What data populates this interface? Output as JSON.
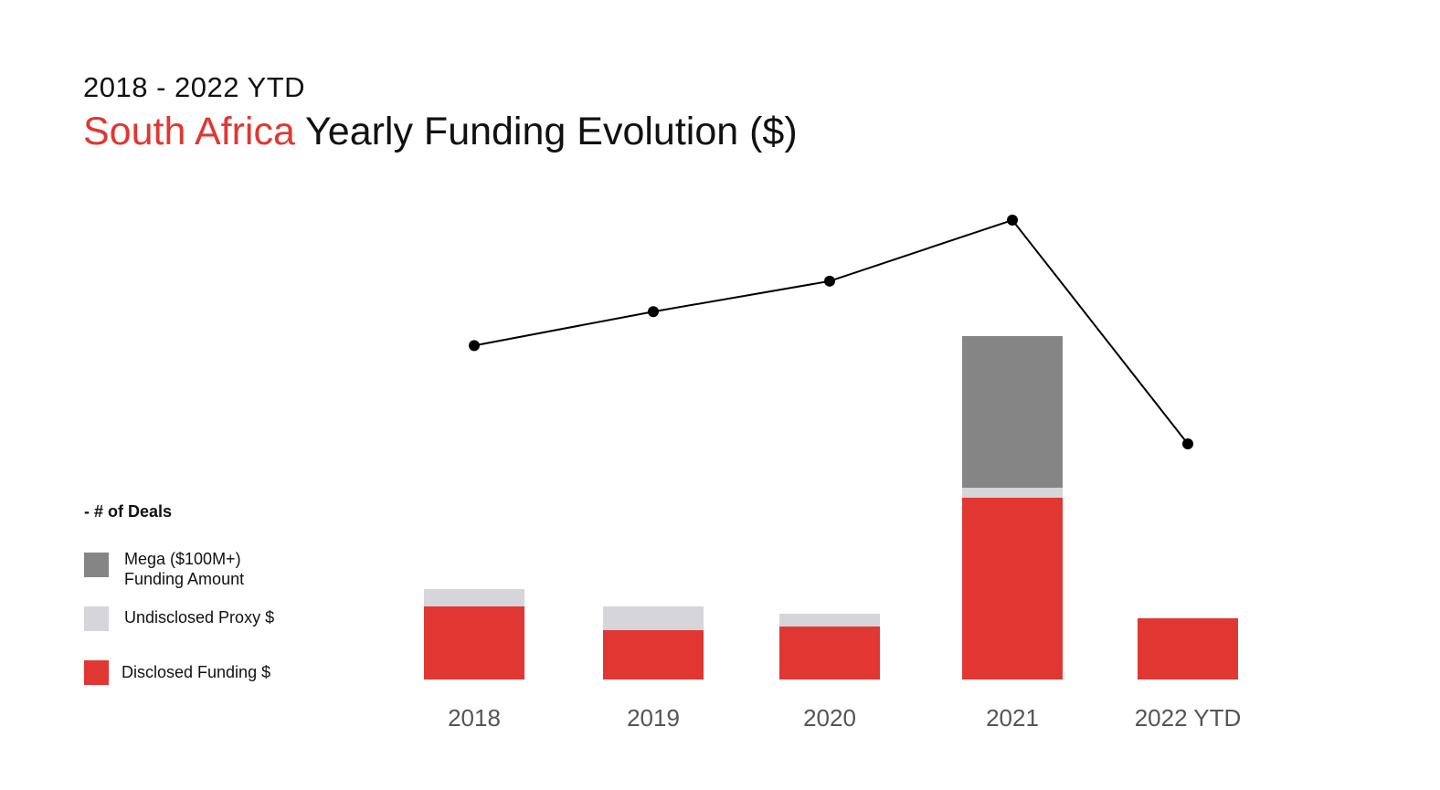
{
  "header": {
    "subtitle": "2018 - 2022  YTD",
    "title_accent": "South Africa",
    "title_rest": " Yearly Funding Evolution ($)"
  },
  "legend": {
    "deals_label": "- # of Deals",
    "items": [
      {
        "label": "Mega ($100M+)\nFunding Amount",
        "color": "#858585"
      },
      {
        "label": "Undisclosed Proxy $",
        "color": "#d5d5da"
      },
      {
        "label": "Disclosed Funding $",
        "color": "#e03733"
      }
    ]
  },
  "chart_data": {
    "type": "bar",
    "stacked": true,
    "categories": [
      "2018",
      "2019",
      "2020",
      "2021",
      "2022 YTD"
    ],
    "series": [
      {
        "name": "Disclosed Funding $",
        "color": "#e03733",
        "values": [
          80,
          54,
          58,
          199,
          67
        ]
      },
      {
        "name": "Undisclosed Proxy $",
        "color": "#d5d5da",
        "values": [
          19,
          26,
          14,
          11,
          0
        ]
      },
      {
        "name": "Mega ($100M+) Funding Amount",
        "color": "#858585",
        "values": [
          0,
          0,
          0,
          166,
          0
        ]
      }
    ],
    "line_series": {
      "name": "# of Deals",
      "color": "#000000",
      "values": [
        75,
        95,
        113,
        149,
        17
      ]
    },
    "grid": false,
    "legend_position": "left"
  }
}
